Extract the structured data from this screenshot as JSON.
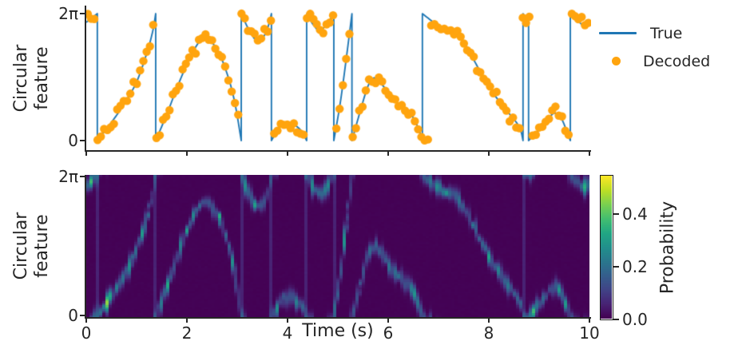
{
  "figure": {
    "kind": "two-panel decoding figure",
    "background": "#ffffff"
  },
  "colors": {
    "true_line": "#1f77b4",
    "decoded_dot": "#ffa40e",
    "axis": "#262626",
    "text": "#262626",
    "heat_min": "#440154",
    "heat_max": "#fde725"
  },
  "legend": {
    "items": [
      {
        "label": "True",
        "marker": "line",
        "color": "#1f77b4"
      },
      {
        "label": "Decoded",
        "marker": "dot",
        "color": "#ffa40e"
      }
    ]
  },
  "chart_data": [
    {
      "type": "line",
      "title": "",
      "xlabel": "",
      "ylabel": "Circular feature",
      "ylabel_lines": [
        "Circular",
        "feature"
      ],
      "xlim": [
        0,
        10
      ],
      "ylim": [
        0,
        6.2832
      ],
      "xticks": [
        0,
        2,
        4,
        6,
        8,
        10
      ],
      "yticks": [
        {
          "value": 0,
          "label": "0"
        },
        {
          "value": 6.2832,
          "label": "2π"
        }
      ],
      "series": [
        {
          "name": "True",
          "type": "line",
          "color": "#1f77b4",
          "units": "radians",
          "wraps_at": 6.2832,
          "segments": [
            [
              [
                0.0,
                5.85
              ],
              [
                0.1,
                6.05
              ],
              [
                0.22,
                6.28
              ]
            ],
            [
              [
                0.22,
                0.0
              ],
              [
                0.5,
                0.9
              ],
              [
                0.75,
                1.8
              ],
              [
                1.0,
                2.9
              ],
              [
                1.2,
                4.3
              ],
              [
                1.32,
                5.4
              ],
              [
                1.38,
                6.28
              ]
            ],
            [
              [
                1.38,
                0.0
              ],
              [
                1.6,
                1.3
              ],
              [
                1.85,
                2.9
              ],
              [
                2.1,
                4.3
              ],
              [
                2.35,
                5.1
              ],
              [
                2.6,
                4.5
              ],
              [
                2.8,
                3.3
              ],
              [
                2.95,
                1.9
              ],
              [
                3.08,
                0.0
              ]
            ],
            [
              [
                3.08,
                6.28
              ],
              [
                3.25,
                5.4
              ],
              [
                3.42,
                4.9
              ],
              [
                3.58,
                5.4
              ],
              [
                3.68,
                6.28
              ]
            ],
            [
              [
                3.68,
                0.0
              ],
              [
                3.85,
                0.65
              ],
              [
                4.05,
                0.85
              ],
              [
                4.25,
                0.55
              ],
              [
                4.38,
                0.0
              ]
            ],
            [
              [
                4.38,
                6.28
              ],
              [
                4.52,
                5.7
              ],
              [
                4.65,
                5.45
              ],
              [
                4.8,
                5.85
              ],
              [
                4.92,
                6.28
              ]
            ],
            [
              [
                4.92,
                0.0
              ],
              [
                5.05,
                1.9
              ],
              [
                5.18,
                4.3
              ],
              [
                5.28,
                6.28
              ]
            ],
            [
              [
                5.28,
                0.0
              ],
              [
                5.45,
                1.5
              ],
              [
                5.6,
                2.7
              ],
              [
                5.72,
                3.1
              ],
              [
                5.9,
                2.7
              ],
              [
                6.05,
                2.2
              ],
              [
                6.25,
                1.7
              ],
              [
                6.45,
                1.3
              ],
              [
                6.6,
                0.6
              ],
              [
                6.68,
                0.0
              ]
            ],
            [
              [
                6.68,
                6.28
              ],
              [
                6.85,
                5.95
              ],
              [
                7.05,
                5.6
              ],
              [
                7.3,
                5.45
              ],
              [
                7.5,
                4.9
              ],
              [
                7.7,
                4.0
              ],
              [
                7.9,
                3.1
              ],
              [
                8.1,
                2.3
              ],
              [
                8.35,
                1.5
              ],
              [
                8.6,
                0.7
              ],
              [
                8.68,
                0.0
              ]
            ],
            [
              [
                8.68,
                6.28
              ],
              [
                8.73,
                6.15
              ],
              [
                8.79,
                6.28
              ]
            ],
            [
              [
                8.79,
                0.0
              ],
              [
                9.0,
                0.55
              ],
              [
                9.2,
                1.15
              ],
              [
                9.32,
                1.35
              ],
              [
                9.45,
                1.05
              ],
              [
                9.55,
                0.45
              ],
              [
                9.62,
                0.0
              ]
            ],
            [
              [
                9.62,
                6.28
              ],
              [
                9.75,
                6.0
              ],
              [
                9.86,
                5.75
              ],
              [
                10.0,
                5.9
              ]
            ]
          ]
        },
        {
          "name": "Decoded",
          "type": "scatter",
          "color": "#ffa40e",
          "derived_from": "True",
          "noise_sigma": 0.16,
          "sample_interval": 0.065,
          "marker_radius_px": 5.2
        }
      ]
    },
    {
      "type": "heatmap",
      "title": "",
      "xlabel": "Time (s)",
      "ylabel": "Circular feature",
      "ylabel_lines": [
        "Circular",
        "feature"
      ],
      "xlim": [
        0,
        10
      ],
      "ylim": [
        0,
        6.2832
      ],
      "xticks": [
        {
          "value": 0,
          "label": "0"
        },
        {
          "value": 2,
          "label": "2"
        },
        {
          "value": 4,
          "label": "4"
        },
        {
          "value": 6,
          "label": "6"
        },
        {
          "value": 8,
          "label": "8"
        },
        {
          "value": 10,
          "label": "10"
        }
      ],
      "yticks": [
        {
          "value": 0,
          "label": "0"
        },
        {
          "value": 6.2832,
          "label": "2π"
        }
      ],
      "colormap": "viridis",
      "vmin": 0.0,
      "vmax": 0.545,
      "ridge": "posterior probability concentrated along the True trajectory",
      "colorbar": {
        "label": "Probability",
        "ticks": [
          {
            "value": 0.0,
            "label": "0.0"
          },
          {
            "value": 0.2,
            "label": "0.2"
          },
          {
            "value": 0.4,
            "label": "0.4"
          }
        ]
      }
    }
  ]
}
